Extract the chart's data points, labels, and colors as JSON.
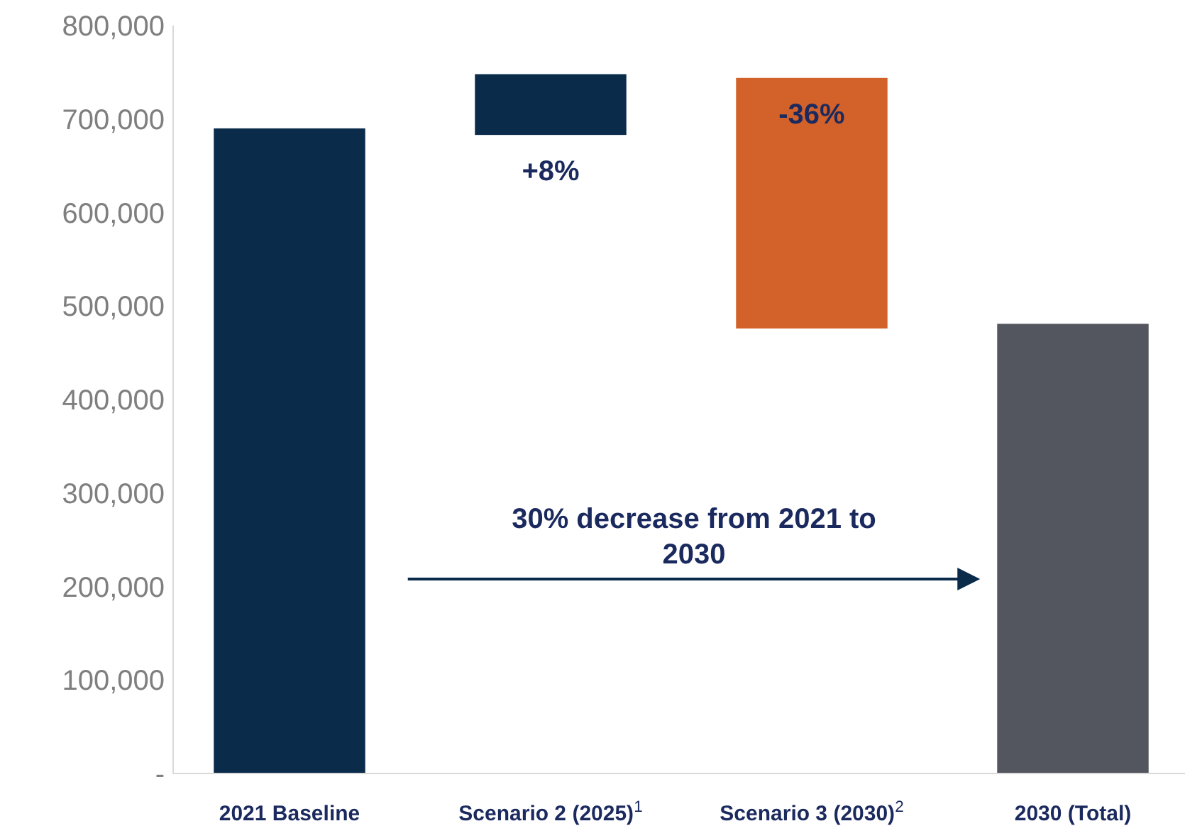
{
  "chart_data": {
    "type": "bar",
    "categories": [
      "2021 Baseline",
      "Scenario 2 (2025)$^{1}$",
      "Scenario 3 (2030)$^{2}$",
      "2030 (Total)"
    ],
    "values": [
      690000,
      65000,
      -268000,
      481000
    ],
    "base": [
      0,
      683000,
      744000,
      0
    ],
    "colors": [
      "#0b2b4b",
      "#0b2b4b",
      "#d3612a",
      "#53565f"
    ],
    "ylim": [
      0,
      800000
    ],
    "yticks": [
      {
        "value": 0,
        "label": "-"
      },
      {
        "value": 100000,
        "label": "100,000"
      },
      {
        "value": 200000,
        "label": "200,000"
      },
      {
        "value": 300000,
        "label": "300,000"
      },
      {
        "value": 400000,
        "label": "400,000"
      },
      {
        "value": 500000,
        "label": "500,000"
      },
      {
        "value": 600000,
        "label": "600,000"
      },
      {
        "value": 700000,
        "label": "700,000"
      },
      {
        "value": 800000,
        "label": "800,000"
      }
    ],
    "annotations": [
      "30% decrease from 2021 to 2030",
      "+8%",
      "-36%"
    ]
  }
}
